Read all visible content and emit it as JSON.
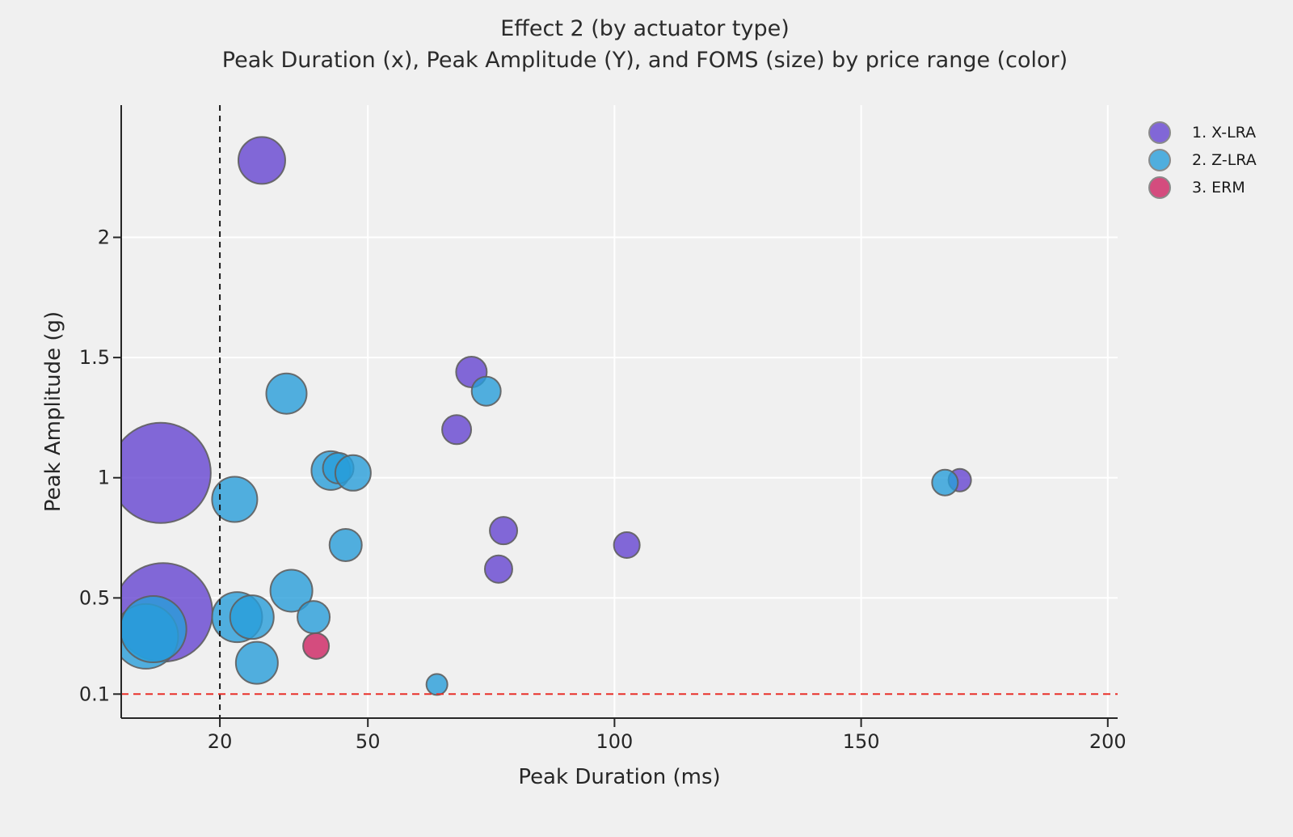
{
  "title": "Effect 2 (by actuator type)",
  "subtitle": "Peak Duration (x), Peak Amplitude (Y), and FOMS (size) by price range (color)",
  "chart_data": {
    "type": "scatter",
    "subtype": "bubble",
    "title": "Effect 2 (by actuator type)",
    "subtitle": "Peak Duration (x), Peak Amplitude (Y), and FOMS (size) by price range (color)",
    "xlabel": "Peak Duration (ms)",
    "ylabel": "Peak Amplitude (g)",
    "xlim": [
      0,
      202
    ],
    "ylim": [
      0,
      2.55
    ],
    "x_ticks": [
      20,
      50,
      100,
      150,
      200
    ],
    "y_ticks": [
      0.1,
      0.5,
      1,
      1.5,
      2
    ],
    "x_gridlines": [
      50,
      100,
      150,
      200
    ],
    "y_gridlines": [
      0.5,
      1,
      1.5,
      2
    ],
    "grid": true,
    "gridline_color": "#ffffff",
    "background_color": "#f0f0f0",
    "legend_position": "top-right",
    "size_legend_note": "bubble size = FOMS",
    "reference_lines": [
      {
        "orientation": "vertical",
        "value": 20,
        "color": "#1a1a1a",
        "style": "dashed"
      },
      {
        "orientation": "horizontal",
        "value": 0.1,
        "color": "#e8302a",
        "style": "dashed"
      }
    ],
    "series": [
      {
        "name": "1. X-LRA",
        "color": "#6545d1",
        "fill_rgba": "rgba(101,69,209,0.8)",
        "points": [
          {
            "x": 28.5,
            "y": 2.32,
            "r": 29
          },
          {
            "x": 8.0,
            "y": 1.02,
            "r": 62
          },
          {
            "x": 71.0,
            "y": 1.44,
            "r": 19
          },
          {
            "x": 68.0,
            "y": 1.2,
            "r": 18
          },
          {
            "x": 77.5,
            "y": 0.78,
            "r": 17
          },
          {
            "x": 76.5,
            "y": 0.62,
            "r": 17
          },
          {
            "x": 102.5,
            "y": 0.72,
            "r": 16
          },
          {
            "x": 170.0,
            "y": 0.99,
            "r": 14
          },
          {
            "x": 8.5,
            "y": 0.44,
            "r": 61
          }
        ]
      },
      {
        "name": "2. Z-LRA",
        "color": "#289dd9",
        "fill_rgba": "rgba(40,157,217,0.8)",
        "points": [
          {
            "x": 33.5,
            "y": 1.35,
            "r": 25
          },
          {
            "x": 74.0,
            "y": 1.36,
            "r": 18
          },
          {
            "x": 23.0,
            "y": 0.91,
            "r": 28
          },
          {
            "x": 42.5,
            "y": 1.03,
            "r": 24
          },
          {
            "x": 44.0,
            "y": 1.04,
            "r": 19
          },
          {
            "x": 47.0,
            "y": 1.02,
            "r": 22
          },
          {
            "x": 45.5,
            "y": 0.72,
            "r": 20
          },
          {
            "x": 167.0,
            "y": 0.98,
            "r": 16
          },
          {
            "x": 5.0,
            "y": 0.34,
            "r": 40
          },
          {
            "x": 6.5,
            "y": 0.37,
            "r": 41
          },
          {
            "x": 23.5,
            "y": 0.42,
            "r": 31
          },
          {
            "x": 26.5,
            "y": 0.42,
            "r": 27
          },
          {
            "x": 34.5,
            "y": 0.53,
            "r": 26
          },
          {
            "x": 39.0,
            "y": 0.42,
            "r": 20
          },
          {
            "x": 27.5,
            "y": 0.23,
            "r": 26
          },
          {
            "x": 64.0,
            "y": 0.14,
            "r": 13
          }
        ]
      },
      {
        "name": "3. ERM",
        "color": "#cd2362",
        "fill_rgba": "rgba(205,35,98,0.8)",
        "points": [
          {
            "x": 39.5,
            "y": 0.3,
            "r": 16
          }
        ]
      }
    ]
  },
  "colors": {
    "background": "#f0f0f0",
    "gridline": "#ffffff",
    "axis": "#262626",
    "bubble_stroke": "#5f5f5f",
    "vline": "#1a1a1a",
    "hline": "#e8302a"
  }
}
